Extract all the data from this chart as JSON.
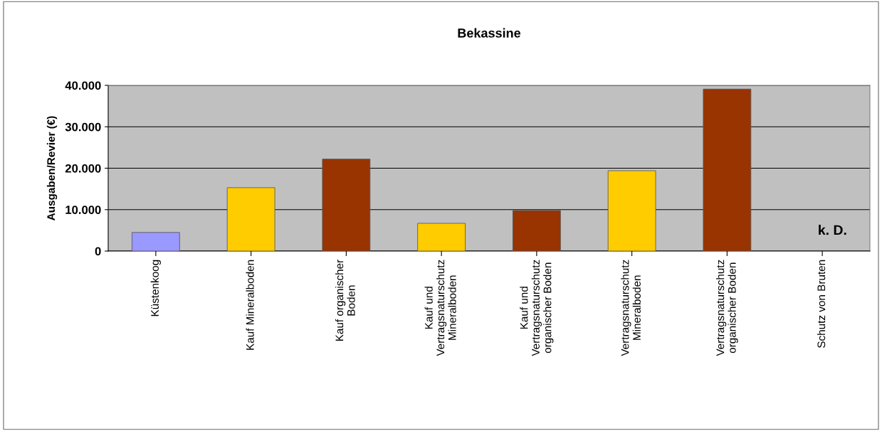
{
  "chart_data": {
    "type": "bar",
    "title": "Bekassine",
    "ylabel": "Ausgaben/Revier (€)",
    "categories": [
      "Küstenkoog",
      "Kauf Mineralboden",
      "Kauf organischer\nBoden",
      "Kauf und\nVertragsnaturschutz\nMineralboden",
      "Kauf und\nVertragsnaturschutz\norganischer Boden",
      "Vertragsnaturschutz\nMineralboden",
      "Vertragsnaturschutz\norganischer Boden",
      "Schutz von Bruten"
    ],
    "values": [
      4500,
      15300,
      22200,
      6700,
      9800,
      19400,
      39100,
      null
    ],
    "colors": [
      "#9999ff",
      "#ffcc00",
      "#993300",
      "#ffcc00",
      "#993300",
      "#ffcc00",
      "#993300",
      "#993300"
    ],
    "ylim": [
      0,
      40000
    ],
    "yticks": [
      0,
      {
        "value": 10000,
        "label": "10.000"
      },
      {
        "value": 20000,
        "label": "20.000"
      },
      {
        "value": 30000,
        "label": "30.000"
      },
      {
        "value": 40000,
        "label": "40.000"
      }
    ],
    "grid": "y",
    "annotations": [
      "k. D."
    ]
  }
}
